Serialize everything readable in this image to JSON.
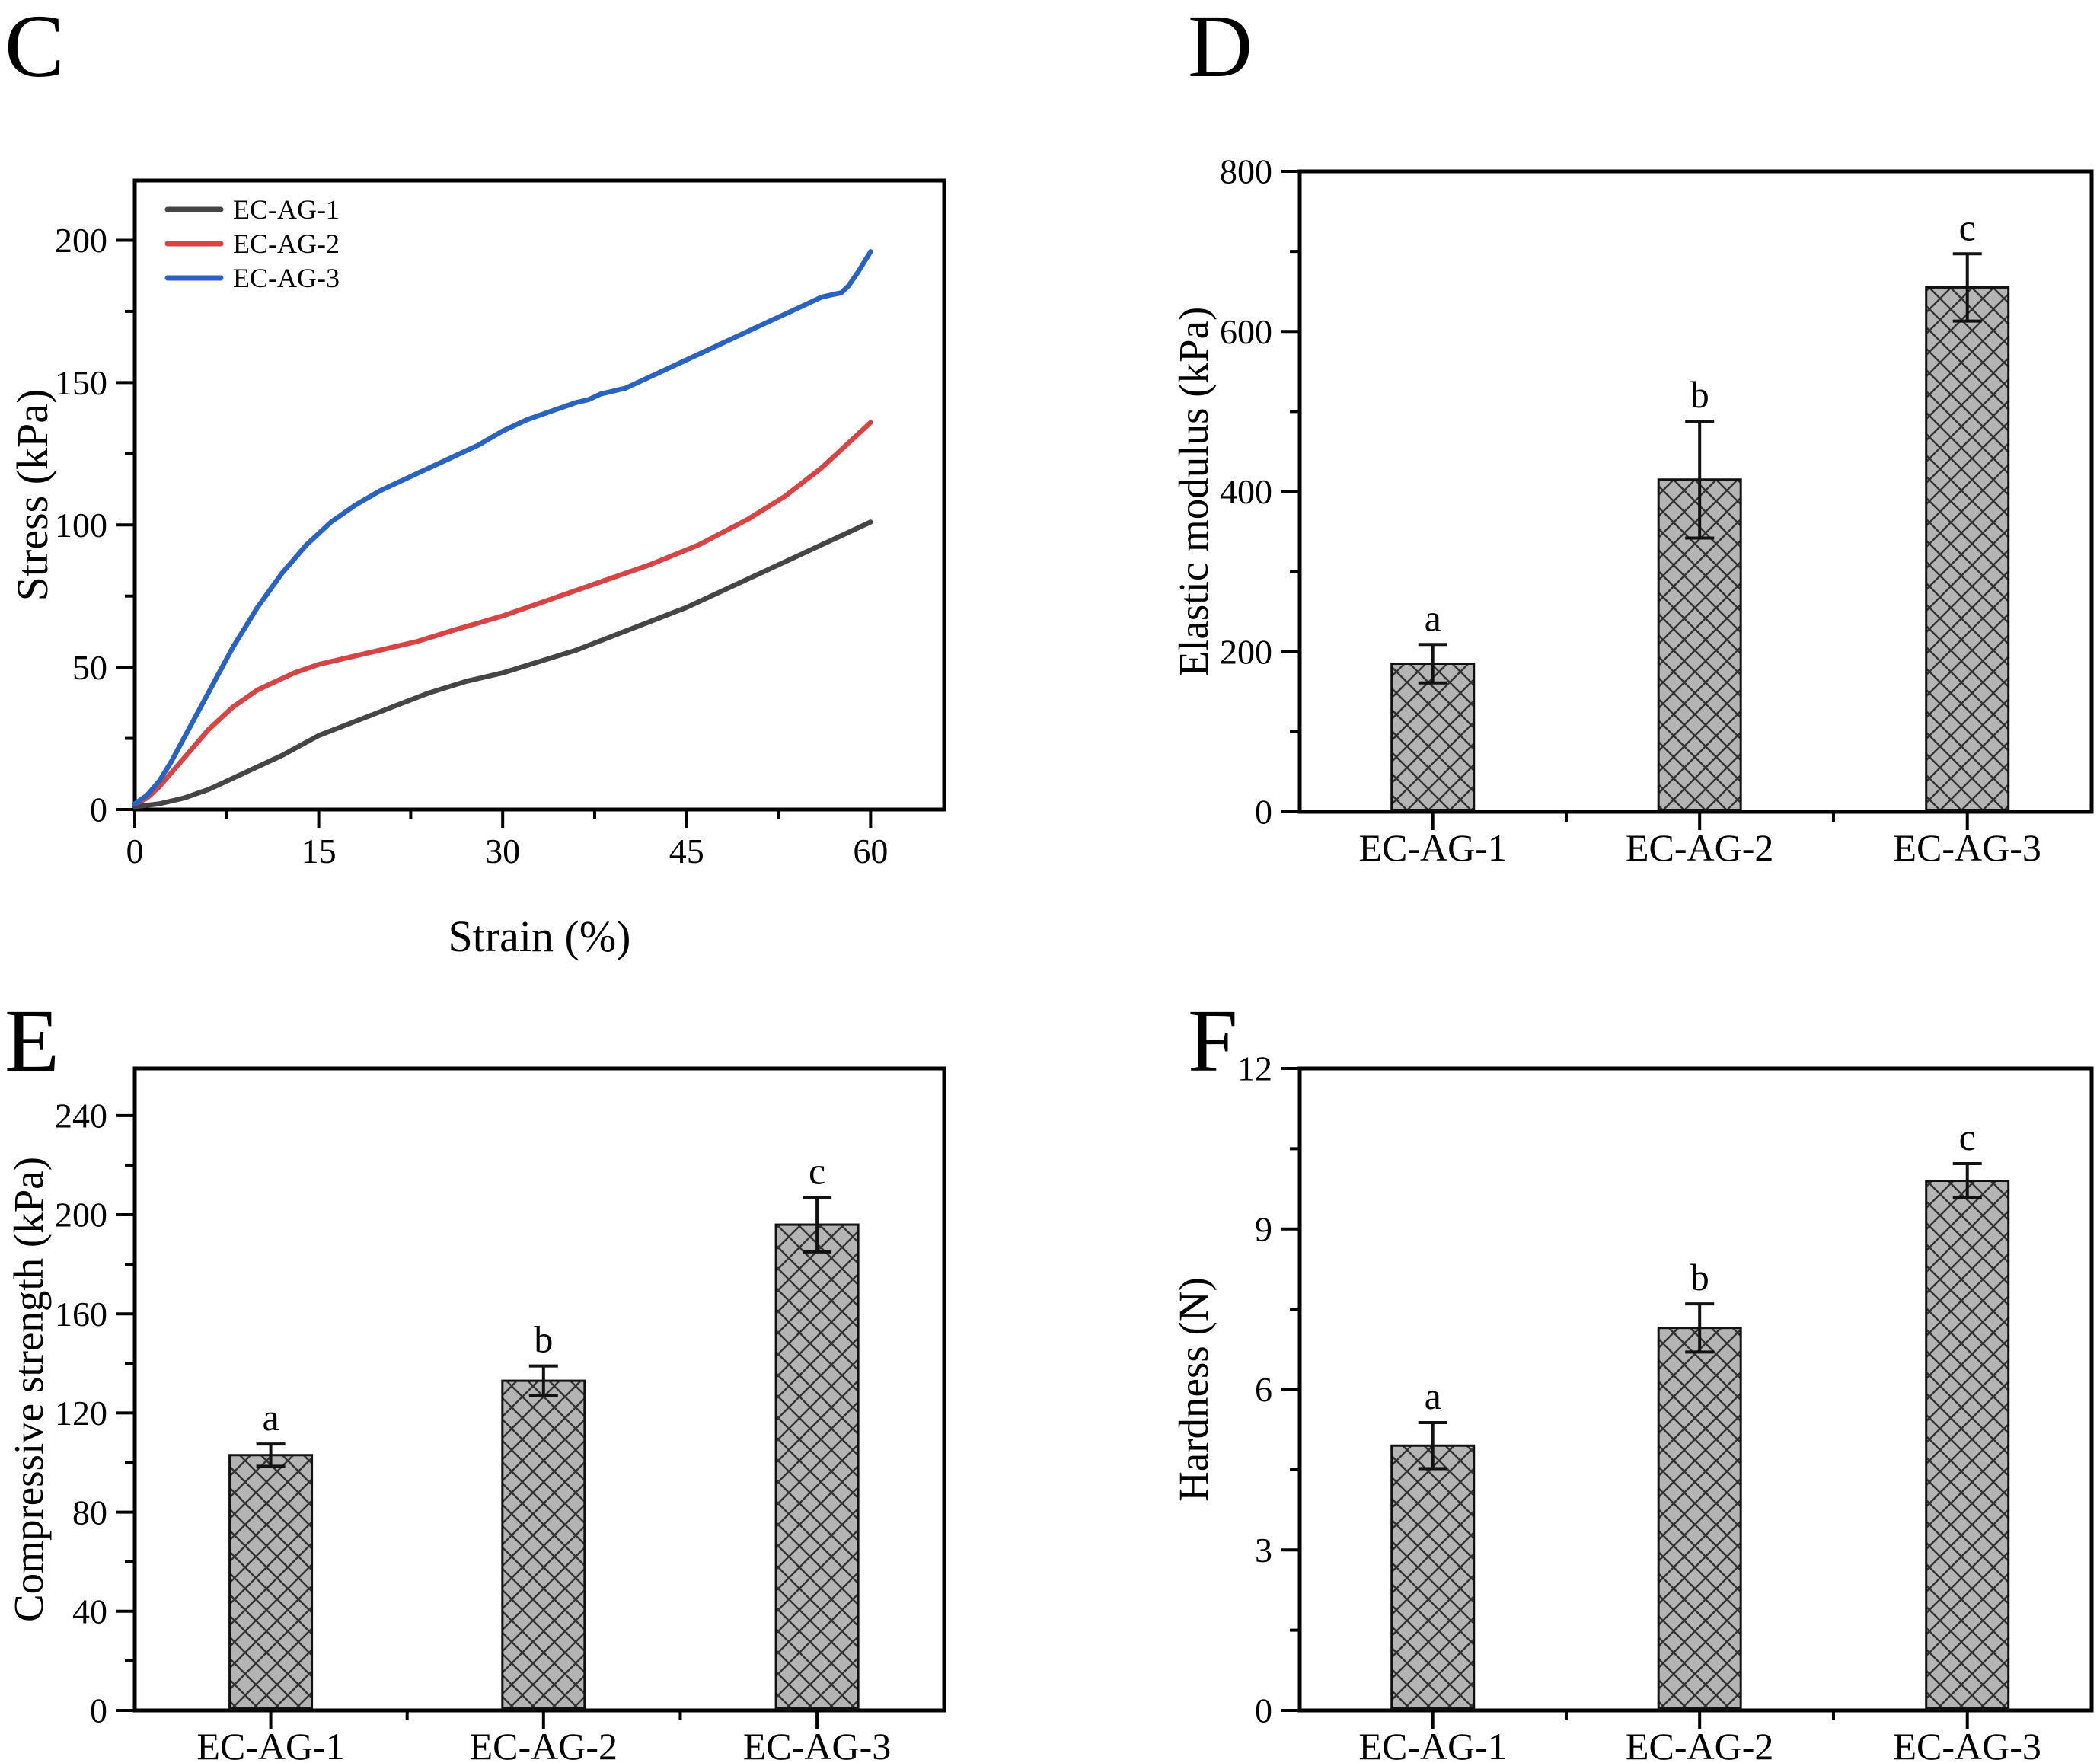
{
  "figure_title": "",
  "colors": {
    "series_ecag1": "#454545",
    "series_ecag2": "#d64545",
    "series_ecag3": "#2a63bf",
    "bar_fill": "#b4b4b4",
    "hatch_line": "#333333",
    "axis": "#000000",
    "text": "#000000",
    "background": "#ffffff"
  },
  "chart_data": [
    {
      "panel_letter": "C",
      "type": "line",
      "title": "",
      "xlabel": "Strain (%)",
      "ylabel": "Stress (kPa)",
      "xlim": [
        0,
        66
      ],
      "ylim": [
        0,
        221
      ],
      "xticks": [
        0,
        15,
        30,
        45,
        60
      ],
      "yticks": [
        0,
        50,
        100,
        150,
        200
      ],
      "x_minor_step": 7.5,
      "y_minor_step": 25,
      "grid": false,
      "legend_position": "top-left",
      "legend": [
        "EC-AG-1",
        "EC-AG-2",
        "EC-AG-3"
      ],
      "series": [
        {
          "name": "EC-AG-1",
          "color": "#454545",
          "x": [
            0,
            2,
            4,
            6,
            8,
            10,
            12,
            15,
            18,
            21,
            24,
            27,
            30,
            33,
            36,
            39,
            42,
            45,
            48,
            51,
            54,
            56,
            58,
            60
          ],
          "y": [
            1,
            2,
            4,
            7,
            11,
            15,
            19,
            26,
            31,
            36,
            41,
            45,
            48,
            52,
            56,
            61,
            66,
            71,
            77,
            83,
            89,
            93,
            97,
            101
          ]
        },
        {
          "name": "EC-AG-2",
          "color": "#d64545",
          "x": [
            0,
            1,
            2,
            3,
            4,
            5,
            6,
            7,
            8,
            9,
            10,
            11,
            12,
            13,
            14,
            15,
            17,
            20,
            23,
            26,
            30,
            34,
            38,
            42,
            46,
            50,
            53,
            56,
            58,
            60
          ],
          "y": [
            2,
            4,
            8,
            13,
            18,
            23,
            28,
            32,
            36,
            39,
            42,
            44,
            46,
            48,
            49.5,
            51,
            53,
            56,
            59,
            63,
            68,
            74,
            80,
            86,
            93,
            102,
            110,
            120,
            128,
            136
          ]
        },
        {
          "name": "EC-AG-3",
          "color": "#2a63bf",
          "x": [
            0,
            1,
            2,
            3,
            4,
            5,
            6,
            7,
            8,
            9,
            10,
            11,
            12,
            13,
            14,
            15,
            16,
            17,
            18,
            20,
            22,
            24,
            26,
            28,
            30,
            32,
            34,
            36,
            37,
            38,
            40,
            42,
            44,
            46,
            48,
            50,
            52,
            54,
            55,
            56,
            57,
            57.6,
            58.2,
            59,
            60
          ],
          "y": [
            2,
            5,
            10,
            17,
            25,
            33,
            41,
            49,
            57,
            64,
            71,
            77,
            83,
            88,
            93,
            97,
            101,
            104,
            107,
            112,
            116,
            120,
            124,
            128,
            133,
            137,
            140,
            143,
            144,
            146,
            148,
            152,
            156,
            160,
            164,
            168,
            172,
            176,
            178,
            180,
            181,
            181.5,
            184,
            189,
            196
          ]
        }
      ]
    },
    {
      "panel_letter": "D",
      "type": "bar",
      "title": "",
      "xlabel": "",
      "ylabel": "Elastic modulus (kPa)",
      "ylim": [
        0,
        800
      ],
      "yticks": [
        0,
        200,
        400,
        600,
        800
      ],
      "y_minor_step": 100,
      "grid": false,
      "categories": [
        "EC-AG-1",
        "EC-AG-2",
        "EC-AG-3"
      ],
      "values": [
        185,
        415,
        655
      ],
      "errors": [
        24,
        73,
        42
      ],
      "sig_letters": [
        "a",
        "b",
        "c"
      ]
    },
    {
      "panel_letter": "E",
      "type": "bar",
      "title": "",
      "xlabel": "",
      "ylabel": "Compressive strength (kPa)",
      "ylim": [
        0,
        259
      ],
      "yticks": [
        0,
        40,
        80,
        120,
        160,
        200,
        240
      ],
      "y_minor_step": 20,
      "grid": false,
      "categories": [
        "EC-AG-1",
        "EC-AG-2",
        "EC-AG-3"
      ],
      "values": [
        103,
        133,
        196
      ],
      "errors": [
        4.5,
        6,
        11
      ],
      "sig_letters": [
        "a",
        "b",
        "c"
      ]
    },
    {
      "panel_letter": "F",
      "type": "bar",
      "title": "",
      "xlabel": "",
      "ylabel": "Hardness (N)",
      "ylim": [
        0,
        12
      ],
      "yticks": [
        0,
        3,
        6,
        9,
        12
      ],
      "y_minor_step": 1.5,
      "grid": false,
      "categories": [
        "EC-AG-1",
        "EC-AG-2",
        "EC-AG-3"
      ],
      "values": [
        4.95,
        7.15,
        9.9
      ],
      "errors": [
        0.43,
        0.45,
        0.32
      ],
      "sig_letters": [
        "a",
        "b",
        "c"
      ]
    }
  ]
}
